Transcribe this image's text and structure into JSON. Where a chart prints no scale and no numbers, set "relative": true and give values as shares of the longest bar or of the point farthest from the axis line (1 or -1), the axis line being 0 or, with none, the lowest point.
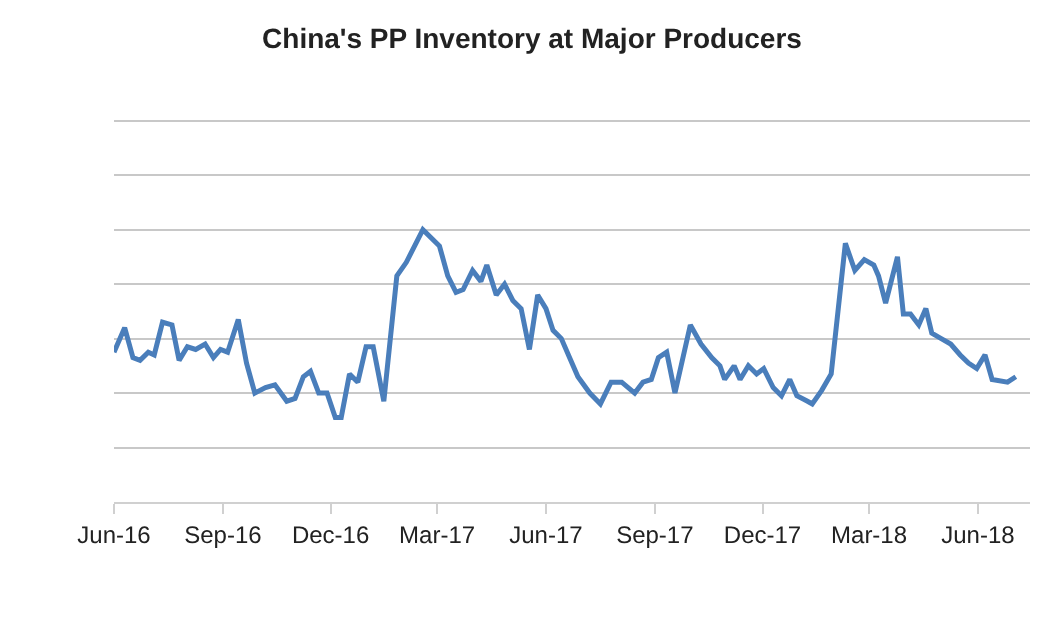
{
  "chart_data": {
    "type": "line",
    "title": "China's PP Inventory at Major Producers",
    "relative": true,
    "grid": "y",
    "marker": "none",
    "line_style": "solid",
    "xlim": [
      "2016-06-01",
      "2018-07-15"
    ],
    "xticks": [
      {
        "value": "2016-06-01",
        "label": "Jun-16"
      },
      {
        "value": "2016-09-01",
        "label": "Sep-16"
      },
      {
        "value": "2016-12-01",
        "label": "Dec-16"
      },
      {
        "value": "2017-03-01",
        "label": "Mar-17"
      },
      {
        "value": "2017-06-01",
        "label": "Jun-17"
      },
      {
        "value": "2017-09-01",
        "label": "Sep-17"
      },
      {
        "value": "2017-12-01",
        "label": "Dec-17"
      },
      {
        "value": "2018-03-01",
        "label": "Mar-18"
      },
      {
        "value": "2018-06-01",
        "label": "Jun-18"
      }
    ],
    "series": [
      {
        "color": "#4a7ebb",
        "x": [
          "2016-06-01",
          "2016-06-10",
          "2016-06-17",
          "2016-06-23",
          "2016-06-30",
          "2016-07-05",
          "2016-07-12",
          "2016-07-20",
          "2016-07-26",
          "2016-08-02",
          "2016-08-09",
          "2016-08-17",
          "2016-08-24",
          "2016-08-30",
          "2016-09-05",
          "2016-09-14",
          "2016-09-21",
          "2016-09-28",
          "2016-10-07",
          "2016-10-15",
          "2016-10-25",
          "2016-11-01",
          "2016-11-08",
          "2016-11-14",
          "2016-11-21",
          "2016-11-28",
          "2016-12-05",
          "2016-12-10",
          "2016-12-17",
          "2016-12-24",
          "2016-12-31",
          "2017-01-06",
          "2017-01-15",
          "2017-01-26",
          "2017-02-03",
          "2017-02-17",
          "2017-03-03",
          "2017-03-10",
          "2017-03-17",
          "2017-03-23",
          "2017-03-31",
          "2017-04-07",
          "2017-04-12",
          "2017-04-20",
          "2017-04-27",
          "2017-05-04",
          "2017-05-11",
          "2017-05-18",
          "2017-05-25",
          "2017-06-01",
          "2017-06-07",
          "2017-06-14",
          "2017-06-21",
          "2017-06-28",
          "2017-07-08",
          "2017-07-17",
          "2017-07-26",
          "2017-08-04",
          "2017-08-15",
          "2017-08-22",
          "2017-08-29",
          "2017-09-04",
          "2017-09-11",
          "2017-09-18",
          "2017-10-01",
          "2017-10-10",
          "2017-10-19",
          "2017-10-26",
          "2017-10-30",
          "2017-11-07",
          "2017-11-12",
          "2017-11-19",
          "2017-11-26",
          "2017-12-02",
          "2017-12-10",
          "2017-12-17",
          "2017-12-24",
          "2017-12-30",
          "2018-01-08",
          "2018-01-12",
          "2018-01-20",
          "2018-01-28",
          "2018-02-09",
          "2018-02-17",
          "2018-02-25",
          "2018-03-05",
          "2018-03-09",
          "2018-03-15",
          "2018-03-25",
          "2018-03-30",
          "2018-04-05",
          "2018-04-12",
          "2018-04-18",
          "2018-04-23",
          "2018-05-01",
          "2018-05-09",
          "2018-05-17",
          "2018-05-24",
          "2018-05-31",
          "2018-06-07",
          "2018-06-13",
          "2018-06-26",
          "2018-07-03"
        ],
        "values": [
          0.55,
          0.64,
          0.53,
          0.52,
          0.55,
          0.54,
          0.66,
          0.65,
          0.52,
          0.57,
          0.56,
          0.58,
          0.53,
          0.56,
          0.55,
          0.67,
          0.51,
          0.4,
          0.42,
          0.43,
          0.37,
          0.38,
          0.46,
          0.48,
          0.4,
          0.4,
          0.31,
          0.31,
          0.47,
          0.44,
          0.57,
          0.57,
          0.37,
          0.83,
          0.88,
          1.0,
          0.94,
          0.83,
          0.77,
          0.78,
          0.85,
          0.81,
          0.87,
          0.76,
          0.8,
          0.74,
          0.71,
          0.56,
          0.76,
          0.71,
          0.63,
          0.6,
          0.53,
          0.46,
          0.4,
          0.36,
          0.44,
          0.44,
          0.4,
          0.44,
          0.45,
          0.53,
          0.55,
          0.4,
          0.65,
          0.58,
          0.53,
          0.5,
          0.45,
          0.5,
          0.45,
          0.5,
          0.47,
          0.49,
          0.42,
          0.39,
          0.45,
          0.39,
          0.37,
          0.36,
          0.41,
          0.47,
          0.95,
          0.85,
          0.89,
          0.87,
          0.83,
          0.73,
          0.9,
          0.69,
          0.69,
          0.65,
          0.71,
          0.62,
          0.6,
          0.58,
          0.54,
          0.51,
          0.49,
          0.54,
          0.45,
          0.44,
          0.46
        ]
      }
    ]
  }
}
